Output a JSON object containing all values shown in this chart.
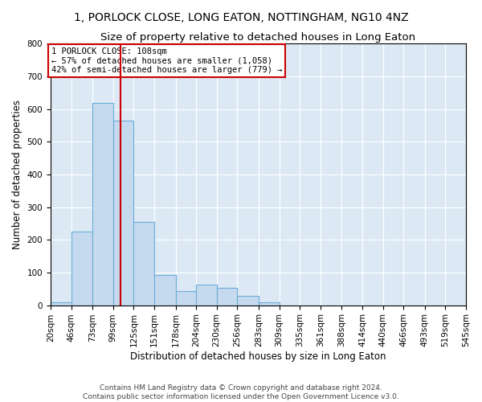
{
  "title": "1, PORLOCK CLOSE, LONG EATON, NOTTINGHAM, NG10 4NZ",
  "subtitle": "Size of property relative to detached houses in Long Eaton",
  "xlabel": "Distribution of detached houses by size in Long Eaton",
  "ylabel": "Number of detached properties",
  "footer_line1": "Contains HM Land Registry data © Crown copyright and database right 2024.",
  "footer_line2": "Contains public sector information licensed under the Open Government Licence v3.0.",
  "property_size": 108,
  "annotation_line1": "1 PORLOCK CLOSE: 108sqm",
  "annotation_line2": "← 57% of detached houses are smaller (1,058)",
  "annotation_line3": "42% of semi-detached houses are larger (779) →",
  "bar_color": "#c5d9ef",
  "bar_edge_color": "#6baed6",
  "vline_color": "#cc0000",
  "annotation_box_color": "#cc0000",
  "background_color": "#dce9f5",
  "bin_edges": [
    20,
    46,
    73,
    99,
    125,
    151,
    178,
    204,
    230,
    256,
    283,
    309,
    335,
    361,
    388,
    414,
    440,
    466,
    493,
    519,
    545
  ],
  "bar_heights": [
    8,
    225,
    618,
    565,
    255,
    93,
    43,
    62,
    52,
    28,
    8,
    0,
    0,
    0,
    0,
    0,
    0,
    0,
    0,
    0
  ],
  "ylim": [
    0,
    800
  ],
  "yticks": [
    0,
    100,
    200,
    300,
    400,
    500,
    600,
    700,
    800
  ],
  "grid_color": "#ffffff",
  "title_fontsize": 10,
  "subtitle_fontsize": 9.5,
  "axis_label_fontsize": 8.5,
  "tick_fontsize": 7.5,
  "annotation_fontsize": 7.5
}
